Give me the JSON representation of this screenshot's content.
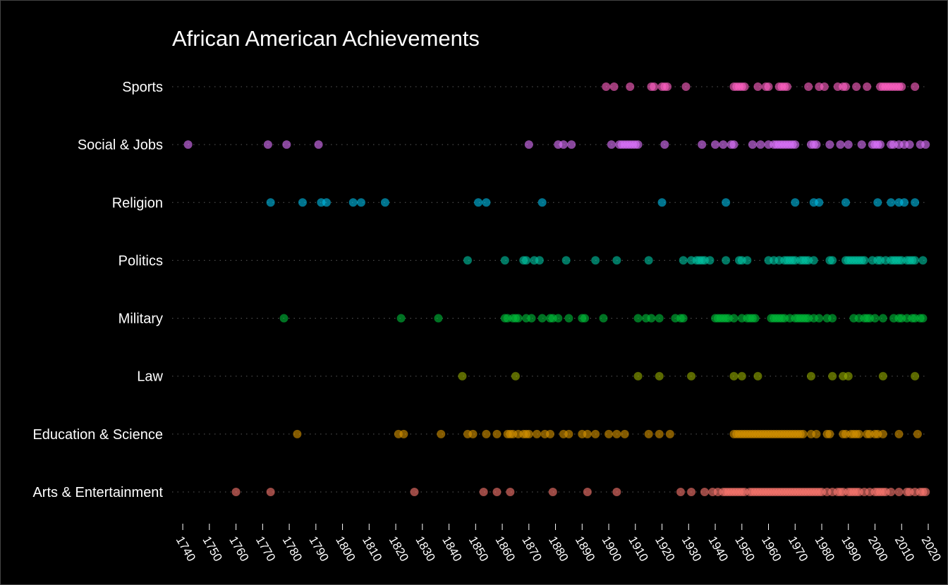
{
  "chart_data": {
    "type": "scatter",
    "title": "African American Achievements",
    "xlabel": "",
    "ylabel": "",
    "xlim": [
      1736,
      2020
    ],
    "x_ticks": [
      1740,
      1750,
      1760,
      1770,
      1780,
      1790,
      1800,
      1810,
      1820,
      1830,
      1840,
      1850,
      1860,
      1870,
      1880,
      1890,
      1900,
      1910,
      1920,
      1930,
      1940,
      1950,
      1960,
      1970,
      1980,
      1990,
      2000,
      2010,
      2020
    ],
    "grid": "horizontal dotted guide per category",
    "legend": "none",
    "categories": [
      "Arts & Entertainment",
      "Education & Science",
      "Law",
      "Military",
      "Politics",
      "Religion",
      "Social & Jobs",
      "Sports"
    ],
    "series": [
      {
        "category": "Arts & Entertainment",
        "color": "#f8766d",
        "x": [
          1760,
          1773,
          1827,
          1853,
          1858,
          1863,
          1879,
          1892,
          1903,
          1927,
          1931,
          1936,
          1939,
          1941,
          1943,
          1944,
          1945,
          1946,
          1947,
          1948,
          1949,
          1950,
          1951,
          1953,
          1954,
          1955,
          1956,
          1957,
          1958,
          1959,
          1960,
          1961,
          1962,
          1963,
          1964,
          1965,
          1966,
          1967,
          1968,
          1969,
          1970,
          1971,
          1972,
          1973,
          1974,
          1975,
          1976,
          1977,
          1978,
          1979,
          1980,
          1982,
          1984,
          1986,
          1987,
          1988,
          1990,
          1991,
          1992,
          1993,
          1994,
          1996,
          1998,
          2000,
          2001,
          2002,
          2003,
          2004,
          2006,
          2009,
          2012,
          2013,
          2015,
          2017,
          2018,
          2019
        ]
      },
      {
        "category": "Education & Science",
        "color": "#d39200",
        "x": [
          1783,
          1821,
          1823,
          1837,
          1847,
          1849,
          1854,
          1858,
          1862,
          1863,
          1864,
          1866,
          1868,
          1869,
          1870,
          1873,
          1876,
          1878,
          1883,
          1885,
          1890,
          1892,
          1895,
          1900,
          1903,
          1906,
          1915,
          1919,
          1923,
          1947,
          1948,
          1949,
          1950,
          1951,
          1952,
          1953,
          1954,
          1955,
          1956,
          1957,
          1958,
          1959,
          1960,
          1961,
          1962,
          1963,
          1964,
          1965,
          1966,
          1967,
          1968,
          1969,
          1970,
          1971,
          1972,
          1973,
          1976,
          1978,
          1982,
          1983,
          1988,
          1989,
          1991,
          1992,
          1993,
          1994,
          1997,
          1998,
          2000,
          2001,
          2003,
          2009,
          2016
        ]
      },
      {
        "category": "Law",
        "color": "#93aa00",
        "x": [
          1845,
          1865,
          1911,
          1919,
          1931,
          1947,
          1950,
          1956,
          1976,
          1984,
          1988,
          1990,
          2003,
          2015
        ]
      },
      {
        "category": "Military",
        "color": "#00ba38",
        "x": [
          1778,
          1822,
          1836,
          1861,
          1862,
          1864,
          1865,
          1866,
          1869,
          1871,
          1875,
          1878,
          1879,
          1881,
          1885,
          1890,
          1891,
          1898,
          1911,
          1914,
          1916,
          1919,
          1925,
          1927,
          1928,
          1940,
          1941,
          1942,
          1943,
          1944,
          1945,
          1947,
          1950,
          1952,
          1953,
          1954,
          1955,
          1961,
          1962,
          1963,
          1964,
          1965,
          1966,
          1968,
          1970,
          1971,
          1972,
          1973,
          1974,
          1975,
          1977,
          1979,
          1982,
          1984,
          1992,
          1994,
          1996,
          1997,
          1998,
          2000,
          2003,
          2007,
          2009,
          2010,
          2012,
          2014,
          2015,
          2017,
          2018
        ]
      },
      {
        "category": "Politics",
        "color": "#00c19f",
        "x": [
          1847,
          1861,
          1868,
          1869,
          1872,
          1874,
          1884,
          1895,
          1903,
          1915,
          1928,
          1931,
          1933,
          1934,
          1935,
          1936,
          1938,
          1944,
          1949,
          1950,
          1952,
          1960,
          1962,
          1964,
          1966,
          1967,
          1968,
          1969,
          1970,
          1972,
          1973,
          1974,
          1975,
          1977,
          1983,
          1984,
          1989,
          1990,
          1991,
          1992,
          1993,
          1994,
          1995,
          1996,
          1999,
          2001,
          2002,
          2004,
          2006,
          2007,
          2008,
          2009,
          2010,
          2012,
          2013,
          2014,
          2015,
          2018
        ]
      },
      {
        "category": "Religion",
        "color": "#00b9e3",
        "x": [
          1773,
          1785,
          1792,
          1794,
          1804,
          1807,
          1816,
          1851,
          1854,
          1875,
          1920,
          1944,
          1970,
          1977,
          1979,
          1989,
          2001,
          2006,
          2009,
          2011,
          2015
        ]
      },
      {
        "category": "Social & Jobs",
        "color": "#db72fb",
        "x": [
          1742,
          1772,
          1779,
          1791,
          1870,
          1881,
          1883,
          1886,
          1901,
          1904,
          1905,
          1906,
          1907,
          1908,
          1909,
          1910,
          1911,
          1921,
          1935,
          1940,
          1943,
          1946,
          1947,
          1954,
          1957,
          1960,
          1962,
          1963,
          1964,
          1965,
          1966,
          1967,
          1968,
          1969,
          1970,
          1976,
          1977,
          1978,
          1983,
          1987,
          1990,
          1995,
          1999,
          2000,
          2001,
          2002,
          2006,
          2007,
          2009,
          2011,
          2013,
          2017,
          2019
        ]
      },
      {
        "category": "Sports",
        "color": "#ff61c3",
        "x": [
          1899,
          1902,
          1908,
          1916,
          1917,
          1920,
          1921,
          1922,
          1929,
          1947,
          1948,
          1949,
          1950,
          1951,
          1956,
          1959,
          1960,
          1964,
          1965,
          1966,
          1967,
          1975,
          1979,
          1981,
          1986,
          1988,
          1989,
          1993,
          1997,
          2002,
          2003,
          2004,
          2005,
          2006,
          2007,
          2008,
          2009,
          2010,
          2015
        ]
      }
    ]
  }
}
